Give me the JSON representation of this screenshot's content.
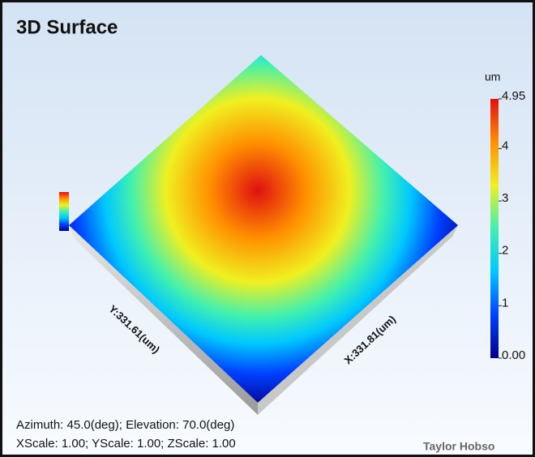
{
  "chart_data": {
    "type": "surface",
    "title": "3D Surface",
    "colorbar_label": "um",
    "zlim": [
      0,
      4.95
    ],
    "zticks": [
      {
        "value": 0,
        "label": "0.00"
      },
      1,
      2,
      3,
      4,
      4.95
    ],
    "colorscale": [
      "#00008b",
      "#0040ff",
      "#00c8ff",
      "#40f0b0",
      "#f0f020",
      "#ff9000",
      "#e01010"
    ],
    "x_axis_label": "X:331.81(um)",
    "y_axis_label": "Y:331.61(um)",
    "view_info": [
      "Azimuth: 45.0(deg); Elevation: 70.0(deg)",
      "XScale: 1.00; YScale: 1.00; ZScale: 1.00"
    ],
    "brand": "Taylor Hobso"
  }
}
